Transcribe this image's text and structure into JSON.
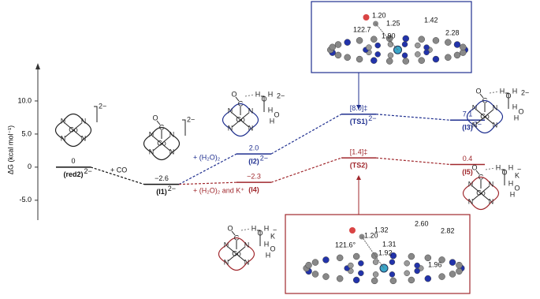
{
  "chart_data": {
    "type": "energy",
    "y_label": "ΔG (kcal mol⁻¹)",
    "ylim": [
      -8,
      15
    ],
    "yticks": [
      {
        "value": 10,
        "label": "10.0"
      },
      {
        "value": 5,
        "label": "5.0"
      },
      0,
      {
        "value": -5,
        "label": "-5.0"
      }
    ],
    "series": [
      {
        "color": "#111111",
        "labels": [
          "(red2)",
          "(I1)"
        ],
        "charges": [
          "2−",
          "2−"
        ],
        "values": [
          0,
          -2.6
        ],
        "value_labels": [
          "0",
          "−2.6"
        ]
      },
      {
        "color": "#1f2f8f",
        "labels": [
          "(I2)",
          "(TS1)",
          "(I3)"
        ],
        "charges": [
          "2−",
          "2−",
          "2−"
        ],
        "values": [
          2.0,
          8.0,
          7.1
        ],
        "value_labels": [
          "2.0",
          "[8.0]‡",
          "7.1"
        ]
      },
      {
        "color": "#a0282d",
        "labels": [
          "(I4)",
          "(TS2)",
          "(I5)"
        ],
        "values": [
          -2.3,
          1.4,
          0.4
        ],
        "value_labels": [
          "−2.3",
          "[1.4]‡",
          "0.4"
        ]
      }
    ],
    "annotations": [
      "+ CO",
      "+ (H₂O)₂",
      "+ (H₂O)₂ and K⁺"
    ]
  },
  "structures": {
    "atoms": {
      "Co": "Co",
      "N": "N",
      "C": "C",
      "O": "O",
      "H": "H",
      "K": "K"
    },
    "charges": [
      "2−",
      "−"
    ],
    "ts1_labels": [
      "1.20",
      "1.25",
      "122.7",
      "1.42",
      "1.90",
      "2.28"
    ],
    "ts2_labels": [
      "1.20",
      "1.32",
      "2.60",
      "2.82",
      "1.31",
      "121.6°",
      "1.92",
      "1.96"
    ]
  }
}
